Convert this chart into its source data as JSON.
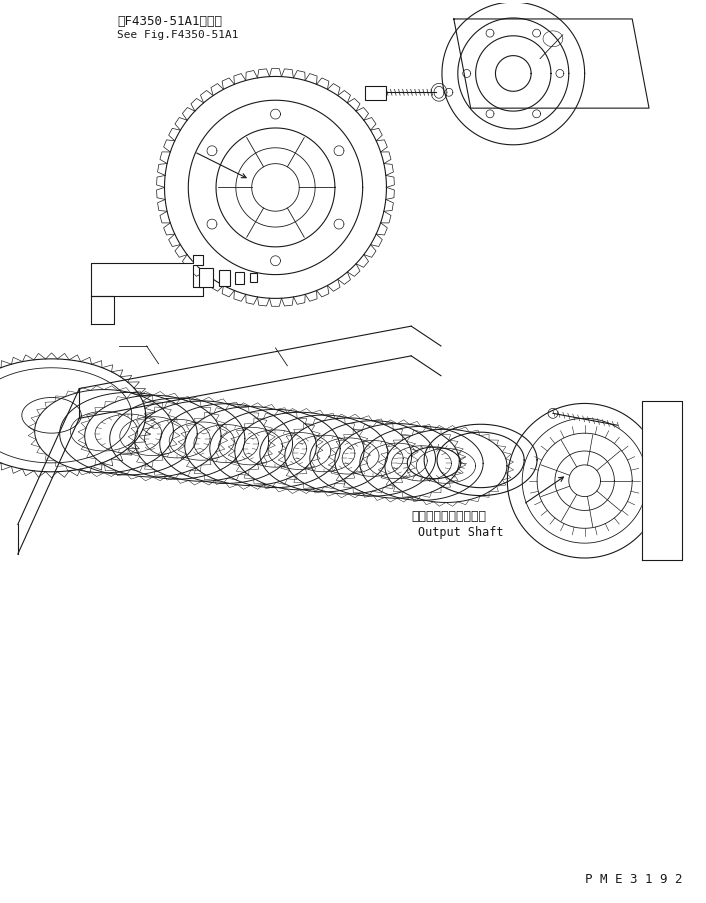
{
  "bg_color": "#ffffff",
  "line_color": "#1a1a1a",
  "label1_jp": "第F4350-51A1図参照",
  "label1_en": "See Fig.F4350-51A1",
  "label2_jp": "アウトプットシャフト",
  "label2_en": "Output Shaft",
  "part_number": "P M E 3 1 9 2",
  "figsize": [
    7.06,
    9.04
  ],
  "dpi": 100
}
